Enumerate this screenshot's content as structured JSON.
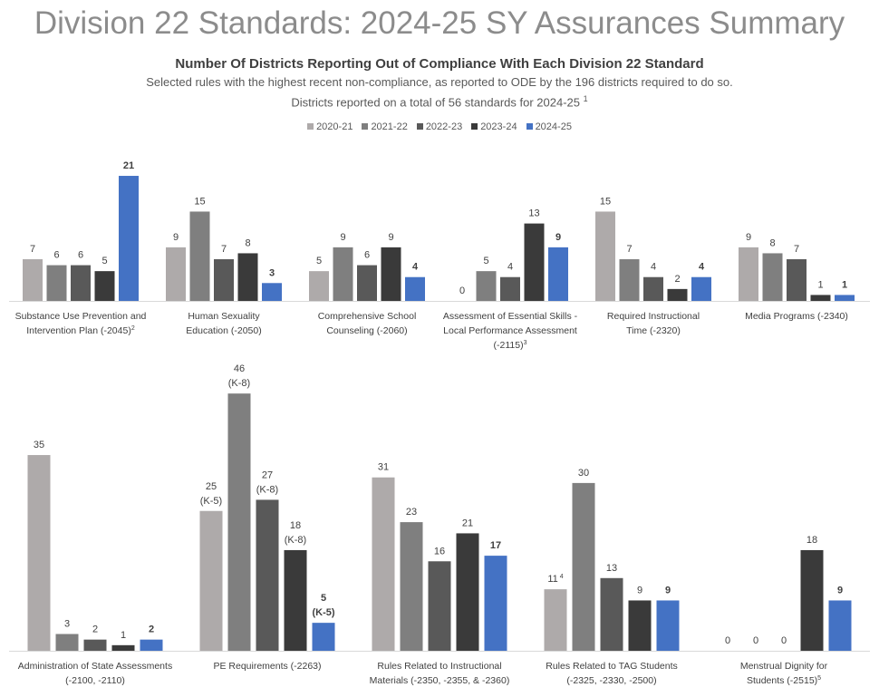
{
  "title": "Division 22 Standards: 2024-25 SY Assurances Summary",
  "subtitle": "Number Of Districts Reporting Out of Compliance With Each Division 22 Standard",
  "note1": "Selected rules with the highest recent non-compliance, as reported to ODE by the 196 districts required to do so.",
  "note2": "Districts reported on a total of 56 standards for 2024-25",
  "note2_footnote": "1",
  "chart_data": [
    {
      "type": "bar",
      "series": [
        {
          "name": "2020-21",
          "color": "#AEAAAA",
          "values": [
            7,
            9,
            5,
            0,
            15,
            9
          ]
        },
        {
          "name": "2021-22",
          "color": "#7F7F7F",
          "values": [
            6,
            15,
            9,
            5,
            7,
            8
          ]
        },
        {
          "name": "2022-23",
          "color": "#595959",
          "values": [
            6,
            7,
            6,
            4,
            4,
            7
          ]
        },
        {
          "name": "2023-24",
          "color": "#3A3A3A",
          "values": [
            5,
            8,
            9,
            13,
            2,
            1
          ]
        },
        {
          "name": "2024-25",
          "color": "#4472C4",
          "values": [
            21,
            3,
            4,
            9,
            4,
            1
          ]
        }
      ],
      "categories": [
        {
          "lines": [
            "Substance Use Prevention and",
            "Intervention Plan (-2045)"
          ],
          "footnote": "2"
        },
        {
          "lines": [
            "Human Sexuality",
            "Education (-2050)"
          ],
          "footnote": ""
        },
        {
          "lines": [
            "Comprehensive School",
            "Counseling (-2060)"
          ],
          "footnote": ""
        },
        {
          "lines": [
            "Assessment of Essential Skills  -",
            "Local Performance Assessment",
            "(-2115)"
          ],
          "footnote": "3"
        },
        {
          "lines": [
            "Required Instructional",
            "Time (-2320)"
          ],
          "footnote": ""
        },
        {
          "lines": [
            "Media Programs (-2340)"
          ],
          "footnote": ""
        }
      ],
      "annotations": [],
      "ylim": [
        0,
        21
      ]
    },
    {
      "type": "bar",
      "series": [
        {
          "name": "2020-21",
          "color": "#AEAAAA",
          "values": [
            35,
            25,
            31,
            11,
            0
          ]
        },
        {
          "name": "2021-22",
          "color": "#7F7F7F",
          "values": [
            3,
            46,
            23,
            30,
            0
          ]
        },
        {
          "name": "2022-23",
          "color": "#595959",
          "values": [
            2,
            27,
            16,
            13,
            0
          ]
        },
        {
          "name": "2023-24",
          "color": "#3A3A3A",
          "values": [
            1,
            18,
            21,
            9,
            18
          ]
        },
        {
          "name": "2024-25",
          "color": "#4472C4",
          "values": [
            2,
            5,
            17,
            9,
            9
          ]
        }
      ],
      "categories": [
        {
          "lines": [
            "Administration of State Assessments",
            "(-2100, -2110)"
          ],
          "footnote": ""
        },
        {
          "lines": [
            "PE Requirements (-2263)"
          ],
          "footnote": ""
        },
        {
          "lines": [
            "Rules Related to Instructional",
            "Materials (-2350, -2355, & -2360)"
          ],
          "footnote": ""
        },
        {
          "lines": [
            "Rules Related to TAG Students",
            "(-2325, -2330, -2500)"
          ],
          "footnote": ""
        },
        {
          "lines": [
            "Menstrual Dignity for",
            "Students (-2515)"
          ],
          "footnote": "5"
        }
      ],
      "annotations": [
        {
          "category": 1,
          "series": 0,
          "text": "(K-5)"
        },
        {
          "category": 1,
          "series": 1,
          "text": "(K-8)"
        },
        {
          "category": 1,
          "series": 2,
          "text": "(K-8)"
        },
        {
          "category": 1,
          "series": 3,
          "text": "(K-8)"
        },
        {
          "category": 1,
          "series": 4,
          "text": "(K-5)"
        },
        {
          "category": 3,
          "series": 0,
          "text": "4",
          "superscript": true
        }
      ],
      "ylim": [
        0,
        46
      ]
    }
  ]
}
